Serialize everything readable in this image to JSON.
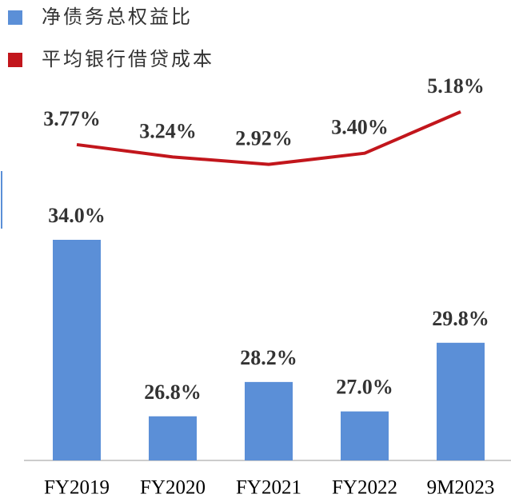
{
  "chart_data": {
    "type": "bar",
    "categories": [
      "FY2019",
      "FY2020",
      "FY2021",
      "FY2022",
      "9M2023"
    ],
    "ylim": [
      25,
      40
    ],
    "y2lim": [
      -9.8,
      6
    ],
    "series": [
      {
        "name": "净债务总权益比",
        "type": "bar",
        "color": "#5b8fd7",
        "values": [
          34.0,
          26.8,
          28.2,
          27.0,
          29.8
        ],
        "value_labels": [
          "34.0%",
          "26.8%",
          "28.2%",
          "27.0%",
          "29.8%"
        ]
      },
      {
        "name": "平均银行借贷成本",
        "type": "line",
        "axis": "y2",
        "color": "#c2161c",
        "values": [
          3.77,
          3.24,
          2.92,
          3.4,
          5.18
        ],
        "value_labels": [
          "3.77%",
          "3.24%",
          "2.92%",
          "3.40%",
          "5.18%"
        ]
      }
    ]
  }
}
